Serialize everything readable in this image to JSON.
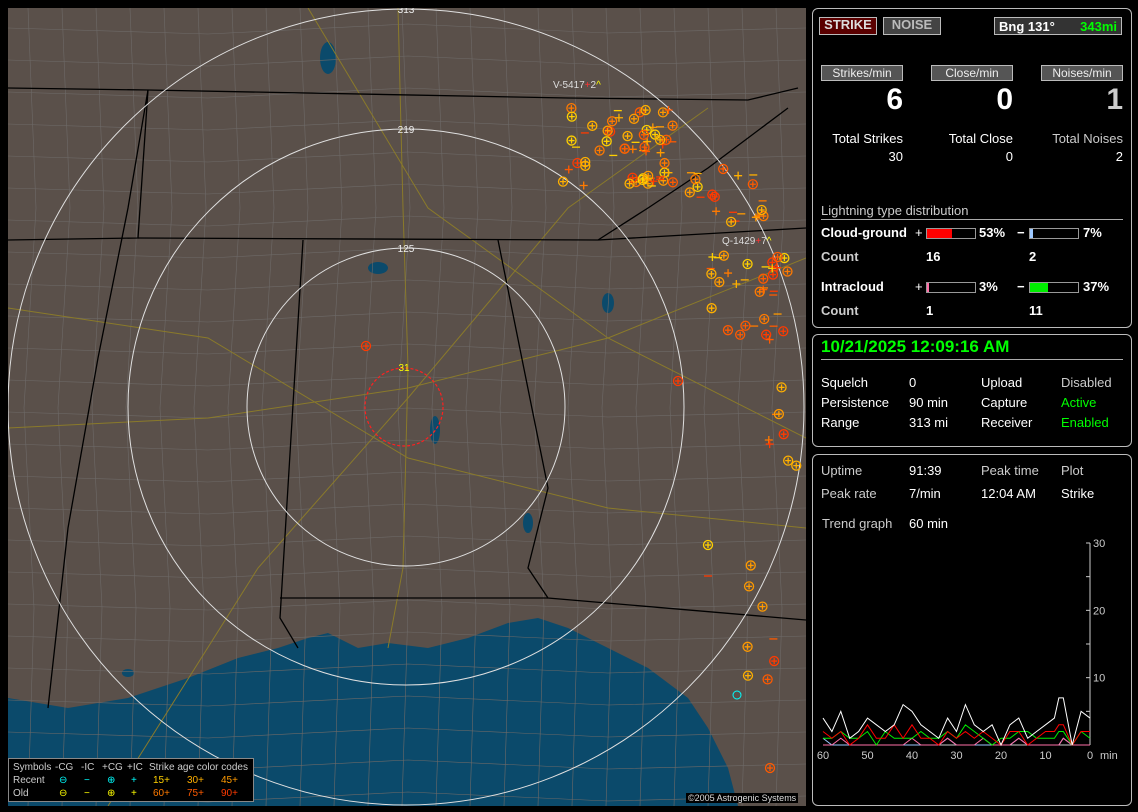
{
  "map": {
    "ring_labels": [
      "313",
      "219",
      "125",
      "31"
    ],
    "storm_labels": [
      {
        "id": "V-5417",
        "sign": "+",
        "count": "2",
        "trend": "^"
      },
      {
        "id": "Q-1429",
        "sign": "+",
        "count": "7",
        "trend": "^"
      }
    ],
    "copyright": "©2005 Astrogenic Systems",
    "colors": {
      "land": "#5a504a",
      "water": "#0b4a6b",
      "ring": "#e0e0e0",
      "close_ring": "#ff2020"
    }
  },
  "legend": {
    "header": [
      "Symbols",
      "-CG",
      "-IC",
      "+CG",
      "+IC",
      "Strike age color codes"
    ],
    "recent_label": "Recent",
    "old_label": "Old",
    "recent_symbols": [
      "⊖",
      "−",
      "⊕",
      "+"
    ],
    "old_symbols": [
      "⊖",
      "−",
      "⊕",
      "+"
    ],
    "age_codes_recent": [
      "15+",
      "30+",
      "45+"
    ],
    "age_codes_old": [
      "60+",
      "75+",
      "90+"
    ],
    "age_colors": [
      "#ffd000",
      "#ffb000",
      "#ff9a00",
      "#ff7a00",
      "#ff5a00",
      "#ff3a00"
    ]
  },
  "top": {
    "strike_button": "STRIKE",
    "noise_button": "NOISE",
    "bearing_label": "Bng 131°",
    "distance": "343mi",
    "rate_buttons": [
      "Strikes/min",
      "Close/min",
      "Noises/min"
    ],
    "rates": [
      "6",
      "0",
      "1"
    ],
    "total_labels": [
      "Total Strikes",
      "Total Close",
      "Total Noises"
    ],
    "totals": [
      "30",
      "0",
      "2"
    ],
    "distribution_title": "Lightning type distribution",
    "cg_label": "Cloud-ground",
    "ic_label": "Intracloud",
    "count_label": "Count",
    "plus": "+",
    "minus": "−",
    "cg_pos_pct": "53%",
    "cg_neg_pct": "7%",
    "ic_pos_pct": "3%",
    "ic_neg_pct": "37%",
    "cg_pos_value": 53,
    "cg_neg_value": 7,
    "ic_pos_value": 3,
    "ic_neg_value": 37,
    "cg_pos_count": "16",
    "cg_neg_count": "2",
    "ic_pos_count": "1",
    "ic_neg_count": "11",
    "bar_colors": {
      "cg_pos": "#ff0000",
      "cg_neg": "#9cc8ff",
      "ic_pos": "#ff6fa8",
      "ic_neg": "#00ee00"
    }
  },
  "status": {
    "datetime": "10/21/2025 12:09:16 AM",
    "rows": [
      {
        "label": "Squelch",
        "value": "0",
        "label2": "Upload",
        "value2": "Disabled"
      },
      {
        "label": "Persistence",
        "value": "90 min",
        "label2": "Capture",
        "value2": "Active"
      },
      {
        "label": "Range",
        "value": "313 mi",
        "label2": "Receiver",
        "value2": "Enabled"
      }
    ]
  },
  "stats": {
    "uptime_label": "Uptime",
    "uptime": "91:39",
    "peak_time_label": "Peak time",
    "plot_label": "Plot",
    "peak_rate_label": "Peak rate",
    "peak_rate": "7/min",
    "peak_time": "12:04 AM",
    "plot_value": "Strike",
    "trend_label": "Trend graph",
    "trend_value": "60 min"
  },
  "chart_data": {
    "type": "line",
    "x_ticks": [
      "60",
      "50",
      "40",
      "30",
      "20",
      "10",
      "0"
    ],
    "x_unit": "min",
    "y_ticks": [
      "10",
      "20",
      "30"
    ],
    "ylim": [
      0,
      30
    ],
    "xlim": [
      60,
      0
    ],
    "x": [
      60,
      58,
      56,
      54,
      52,
      50,
      48,
      46,
      44,
      42,
      40,
      38,
      36,
      34,
      32,
      30,
      28,
      26,
      24,
      22,
      20,
      18,
      16,
      14,
      12,
      10,
      8,
      7,
      6,
      4,
      2,
      0
    ],
    "series": [
      {
        "color": "#ffffff",
        "values": [
          4,
          2,
          5,
          1,
          2,
          4,
          3,
          2,
          3,
          6,
          5,
          3,
          2,
          1,
          4,
          2,
          6,
          3,
          2,
          3,
          0,
          3,
          4,
          1,
          2,
          3,
          4,
          7,
          7,
          0,
          5,
          4
        ]
      },
      {
        "color": "#ff0000",
        "values": [
          2,
          1,
          2,
          0,
          1,
          3,
          1,
          1,
          3,
          1,
          3,
          1,
          1,
          0,
          2,
          1,
          2,
          1,
          2,
          1,
          0,
          2,
          2,
          0,
          1,
          2,
          2,
          3,
          3,
          0,
          2,
          2
        ]
      },
      {
        "color": "#00ee00",
        "values": [
          1,
          1,
          2,
          1,
          1,
          2,
          0,
          2,
          1,
          1,
          1,
          2,
          1,
          1,
          2,
          1,
          3,
          2,
          1,
          0,
          1,
          1,
          2,
          2,
          1,
          1,
          1,
          2,
          2,
          0,
          2,
          1
        ]
      },
      {
        "color": "#ff6fa8",
        "values": [
          0,
          0,
          1,
          0,
          0,
          0,
          0,
          0,
          0,
          0,
          1,
          0,
          0,
          0,
          1,
          0,
          0,
          0,
          1,
          0,
          0,
          0,
          1,
          0,
          0,
          0,
          0,
          0,
          1,
          0,
          0,
          0
        ]
      },
      {
        "color": "#9cc8ff",
        "values": [
          1,
          0,
          0,
          0,
          0,
          0,
          0,
          0,
          0,
          0,
          0,
          0,
          0,
          0,
          1,
          0,
          0,
          0,
          0,
          0,
          0,
          0,
          1,
          0,
          0,
          0,
          0,
          0,
          1,
          0,
          0,
          0
        ]
      }
    ]
  }
}
